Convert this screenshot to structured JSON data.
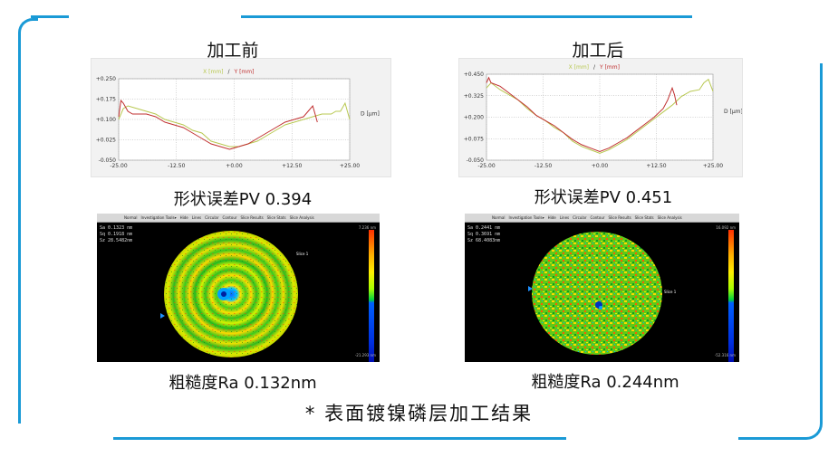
{
  "colors": {
    "frame": "#1a9ad6",
    "series_x": "#b8c850",
    "series_y": "#c03030"
  },
  "left": {
    "title": "加工前",
    "profile_caption": "形状误差PV 0.394",
    "roughness_caption": "粗糙度Ra 0.132nm",
    "map": {
      "stats": [
        "Sa 0.1323 nm",
        "Sq 0.1918 nm",
        "Sz 28.5482nm"
      ],
      "toolbar": [
        "Normal",
        "Investigation Tools▾",
        "Hide",
        "Lines",
        "Circular",
        "Contour",
        "Slice Results",
        "Slice Stats",
        "Slice Analysis"
      ],
      "scale_top": "7.236 nm",
      "scale_bottom": "-21.293 nm",
      "marker": "Slice 1"
    }
  },
  "right": {
    "title": "加工后",
    "profile_caption": "形状误差PV 0.451",
    "roughness_caption": "粗糙度Ra 0.244nm",
    "map": {
      "stats": [
        "Sa 0.2441 nm",
        "Sq 0.3691 nm",
        "Sz 68.4083nm"
      ],
      "toolbar": [
        "Normal",
        "Investigation Tools▾",
        "Hide",
        "Lines",
        "Circular",
        "Contour",
        "Slice Results",
        "Slice Stats",
        "Slice Analysis"
      ],
      "scale_top": "16.092 nm",
      "scale_bottom": "-52.316 nm",
      "marker": "Slice 1"
    }
  },
  "footer": "* 表面镀镍磷层加工结果",
  "chart_data": [
    {
      "type": "line",
      "legend": "X [mm]  /  Y [mm]",
      "legend_x": "X [mm]",
      "legend_sep": "/",
      "legend_y": "Y [mm]",
      "ylabel": "D [µm]",
      "xlim": [
        -25,
        25
      ],
      "ylim": [
        -0.05,
        0.25
      ],
      "xticks": [
        "-25.00",
        "-12.50",
        "+0.00",
        "+12.50",
        "+25.00"
      ],
      "yticks": [
        "+0.250",
        "+0.175",
        "+0.100",
        "+0.025",
        "-0.050"
      ],
      "xtick_values": [
        -25,
        -12.5,
        0,
        12.5,
        25
      ],
      "ytick_values": [
        0.25,
        0.175,
        0.1,
        0.025,
        -0.05
      ],
      "series": [
        {
          "name": "X [mm]",
          "x": [
            -25,
            -24,
            -23,
            -21,
            -19,
            -17,
            -15,
            -13,
            -11,
            -9,
            -7,
            -5,
            -3,
            -1,
            1,
            3,
            5,
            7,
            9,
            11,
            13,
            15,
            17,
            19,
            21,
            22,
            23,
            24,
            25
          ],
          "y": [
            0.1,
            0.14,
            0.15,
            0.14,
            0.13,
            0.12,
            0.1,
            0.09,
            0.08,
            0.06,
            0.05,
            0.02,
            0.01,
            0.0,
            0.0,
            0.01,
            0.02,
            0.04,
            0.06,
            0.08,
            0.09,
            0.1,
            0.11,
            0.12,
            0.12,
            0.13,
            0.13,
            0.16,
            0.1
          ]
        },
        {
          "name": "Y [mm]",
          "x": [
            -25,
            -24.5,
            -24,
            -23,
            -22,
            -21,
            -19,
            -17,
            -15,
            -13,
            -11,
            -9,
            -7,
            -5,
            -3,
            -1,
            1,
            3,
            5,
            7,
            9,
            11,
            13,
            15,
            16,
            17,
            17.5,
            18
          ],
          "y": [
            0.11,
            0.17,
            0.16,
            0.13,
            0.12,
            0.12,
            0.12,
            0.11,
            0.09,
            0.08,
            0.07,
            0.05,
            0.03,
            0.01,
            0.0,
            -0.01,
            0.0,
            0.01,
            0.03,
            0.05,
            0.07,
            0.09,
            0.1,
            0.11,
            0.13,
            0.15,
            0.12,
            0.09
          ]
        }
      ]
    },
    {
      "type": "line",
      "legend": "X [mm]  /  Y [mm]",
      "legend_x": "X [mm]",
      "legend_sep": "/",
      "legend_y": "Y [mm]",
      "ylabel": "D [µm]",
      "xlim": [
        -25,
        25
      ],
      "ylim": [
        -0.05,
        0.45
      ],
      "xticks": [
        "-25.00",
        "-12.50",
        "+0.00",
        "+12.50",
        "+25.00"
      ],
      "yticks": [
        "+0.450",
        "+0.325",
        "+0.200",
        "+0.075",
        "-0.050"
      ],
      "xtick_values": [
        -25,
        -12.5,
        0,
        12.5,
        25
      ],
      "ytick_values": [
        0.45,
        0.325,
        0.2,
        0.075,
        -0.05
      ],
      "series": [
        {
          "name": "X [mm]",
          "x": [
            -25,
            -24,
            -22,
            -20,
            -18,
            -16,
            -14,
            -12,
            -10,
            -8,
            -6,
            -4,
            -2,
            0,
            2,
            4,
            6,
            8,
            10,
            12,
            14,
            16,
            18,
            20,
            22,
            23,
            24,
            25
          ],
          "y": [
            0.37,
            0.4,
            0.36,
            0.33,
            0.3,
            0.25,
            0.21,
            0.18,
            0.14,
            0.11,
            0.06,
            0.03,
            0.01,
            -0.01,
            0.01,
            0.04,
            0.07,
            0.11,
            0.15,
            0.19,
            0.23,
            0.27,
            0.32,
            0.35,
            0.36,
            0.4,
            0.42,
            0.35
          ]
        },
        {
          "name": "Y [mm]",
          "x": [
            -25,
            -24.5,
            -24,
            -22,
            -20,
            -18,
            -16,
            -14,
            -12,
            -10,
            -8,
            -6,
            -4,
            -2,
            0,
            2,
            4,
            6,
            8,
            10,
            12,
            14,
            15,
            16,
            16.5,
            17
          ],
          "y": [
            0.4,
            0.43,
            0.4,
            0.38,
            0.34,
            0.3,
            0.26,
            0.21,
            0.18,
            0.15,
            0.11,
            0.07,
            0.04,
            0.02,
            0.0,
            0.02,
            0.05,
            0.08,
            0.12,
            0.16,
            0.2,
            0.25,
            0.3,
            0.37,
            0.33,
            0.27
          ]
        }
      ]
    }
  ]
}
